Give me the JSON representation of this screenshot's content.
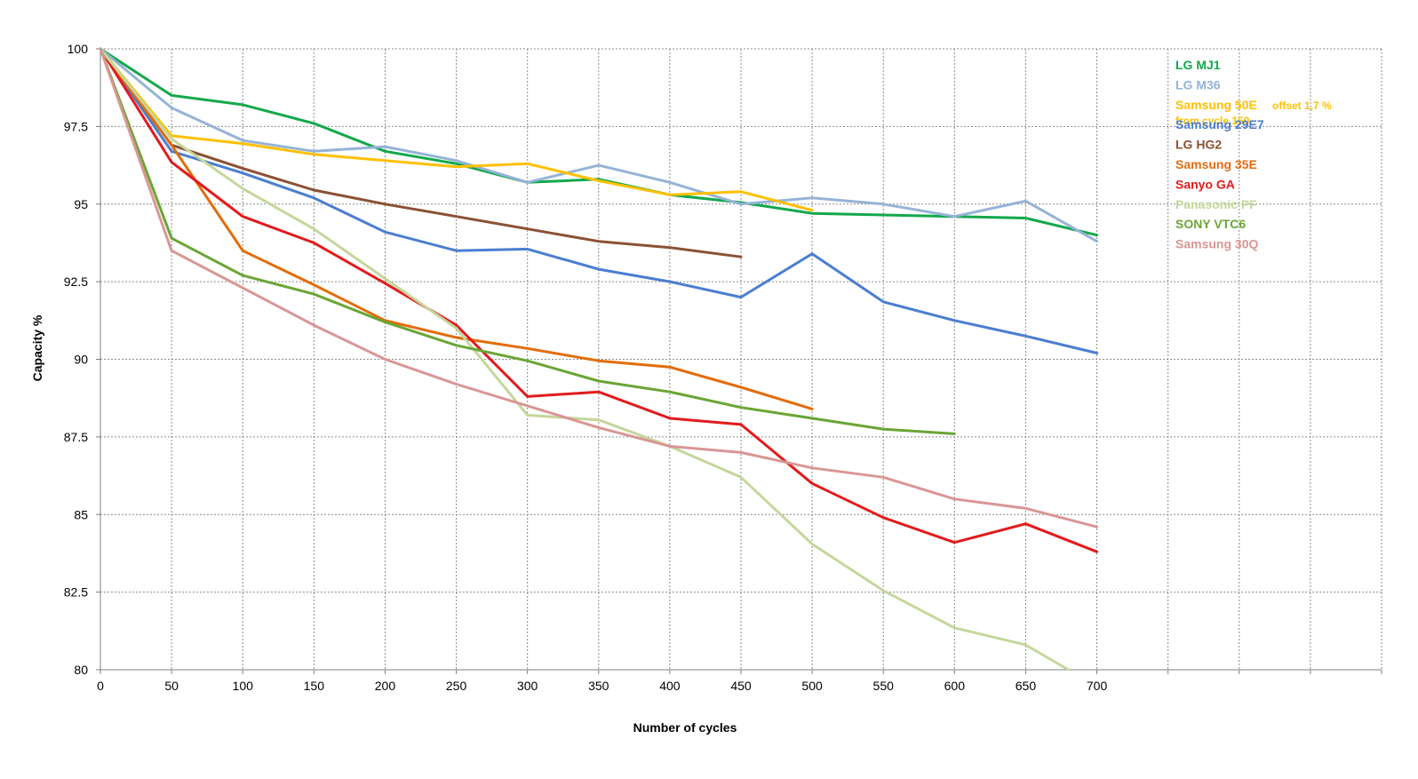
{
  "chart_data": {
    "type": "line",
    "title": "",
    "xlabel": "Number of cycles",
    "ylabel": "Capacity %",
    "xlim": [
      0,
      900
    ],
    "ylim": [
      80,
      100
    ],
    "x_ticks": [
      0,
      50,
      100,
      150,
      200,
      250,
      300,
      350,
      400,
      450,
      500,
      550,
      600,
      650,
      700
    ],
    "x_tick_labels": [
      "0",
      "50",
      "100",
      "150",
      "200",
      "250",
      "300",
      "350",
      "400",
      "450",
      "500",
      "550",
      "600",
      "650",
      "700"
    ],
    "y_ticks": [
      80,
      82.5,
      85,
      87.5,
      90,
      92.5,
      95,
      97.5,
      100
    ],
    "y_tick_labels": [
      "80",
      "82.5",
      "85",
      "87.5",
      "90",
      "92.5",
      "95",
      "97.5",
      "100"
    ],
    "grid": true,
    "legend_position": "top-right",
    "series": [
      {
        "name": "LG MJ1",
        "color": "#12a84b",
        "x": [
          0,
          50,
          100,
          150,
          200,
          250,
          300,
          350,
          400,
          450,
          500,
          550,
          600,
          650,
          700
        ],
        "values": [
          100,
          98.5,
          98.2,
          97.6,
          96.7,
          96.3,
          95.7,
          95.8,
          95.3,
          95.05,
          94.7,
          94.65,
          94.6,
          94.55,
          94.0
        ]
      },
      {
        "name": "LG M36",
        "color": "#95b3d7",
        "x": [
          0,
          50,
          100,
          150,
          200,
          250,
          300,
          350,
          400,
          450,
          500,
          550,
          600,
          650,
          700
        ],
        "values": [
          100,
          98.1,
          97.05,
          96.7,
          96.85,
          96.4,
          95.7,
          96.25,
          95.7,
          95.0,
          95.2,
          95.0,
          94.6,
          95.1,
          93.8
        ]
      },
      {
        "name": "Samsung 50E",
        "note": "offset 1,7  %",
        "note2": "from cycle 150",
        "color": "#ffc000",
        "x": [
          0,
          50,
          100,
          150,
          200,
          250,
          300,
          350,
          400,
          450,
          500
        ],
        "values": [
          100,
          97.2,
          96.95,
          96.6,
          96.4,
          96.2,
          96.3,
          95.75,
          95.3,
          95.4,
          94.8
        ]
      },
      {
        "name": "Samsung 29E7",
        "color": "#4a7ed0",
        "x": [
          0,
          50,
          100,
          150,
          200,
          250,
          300,
          350,
          400,
          450,
          500,
          550,
          600,
          650,
          700
        ],
        "values": [
          100,
          96.7,
          96.0,
          95.2,
          94.1,
          93.5,
          93.55,
          92.9,
          92.5,
          92.0,
          93.4,
          91.85,
          91.25,
          90.75,
          90.2
        ]
      },
      {
        "name": "LG HG2",
        "color": "#8b5134",
        "x": [
          0,
          50,
          100,
          150,
          200,
          250,
          300,
          350,
          400,
          450
        ],
        "values": [
          100,
          96.9,
          96.15,
          95.45,
          95.0,
          94.6,
          94.2,
          93.8,
          93.6,
          93.3
        ]
      },
      {
        "name": "Samsung 35E",
        "color": "#e36c09",
        "x": [
          0,
          50,
          100,
          150,
          200,
          250,
          300,
          350,
          400,
          450,
          500
        ],
        "values": [
          100,
          96.9,
          93.5,
          92.4,
          91.25,
          90.7,
          90.35,
          89.95,
          89.75,
          89.1,
          88.4
        ]
      },
      {
        "name": "Sanyo GA",
        "color": "#e31a1c",
        "x": [
          0,
          50,
          100,
          150,
          200,
          250,
          300,
          350,
          400,
          450,
          500,
          550,
          600,
          650,
          700
        ],
        "values": [
          100,
          96.35,
          94.6,
          93.75,
          92.45,
          91.1,
          88.8,
          88.95,
          88.1,
          87.9,
          86.0,
          84.9,
          84.1,
          84.7,
          83.8
        ]
      },
      {
        "name": "Panasonic PF",
        "color": "#c4d79b",
        "x": [
          0,
          50,
          100,
          150,
          200,
          250,
          300,
          350,
          400,
          450,
          500,
          550,
          600,
          650,
          680
        ],
        "values": [
          100,
          97.1,
          95.5,
          94.2,
          92.6,
          91.0,
          88.2,
          88.05,
          87.2,
          86.2,
          84.05,
          82.55,
          81.35,
          80.8,
          80.0
        ]
      },
      {
        "name": "SONY VTC6",
        "color": "#6aa535",
        "x": [
          0,
          50,
          100,
          150,
          200,
          250,
          300,
          350,
          400,
          450,
          500,
          550,
          600
        ],
        "values": [
          100,
          93.9,
          92.7,
          92.1,
          91.2,
          90.45,
          89.95,
          89.3,
          88.95,
          88.45,
          88.1,
          87.75,
          87.6
        ]
      },
      {
        "name": "Samsung 30Q",
        "color": "#d99694",
        "x": [
          0,
          50,
          100,
          150,
          200,
          250,
          300,
          350,
          400,
          450,
          500,
          550,
          600,
          650,
          700
        ],
        "values": [
          100,
          93.5,
          92.3,
          91.1,
          90.0,
          89.2,
          88.5,
          87.8,
          87.2,
          87.0,
          86.5,
          86.2,
          85.5,
          85.2,
          84.6
        ]
      }
    ]
  }
}
